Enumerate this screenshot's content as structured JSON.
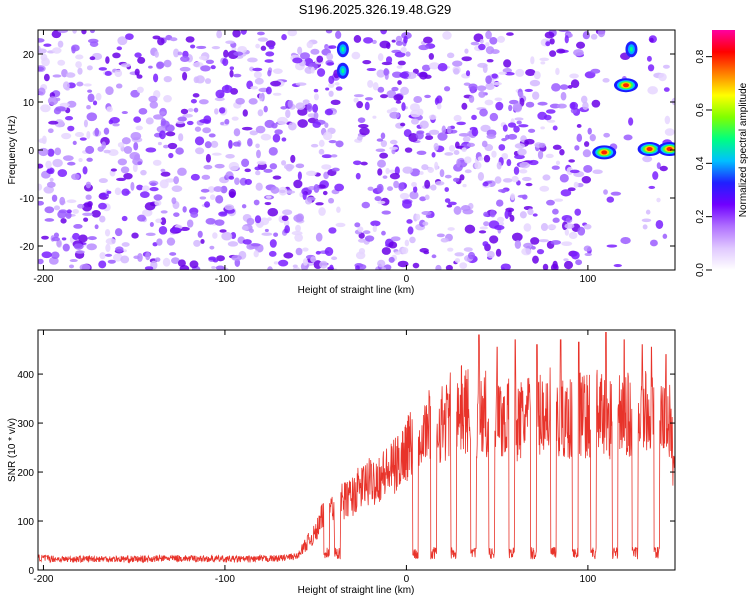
{
  "title": "S196.2025.326.19.48.G29",
  "chart_data": [
    {
      "type": "heatmap",
      "title": "",
      "xlabel": "Height of straight line (km)",
      "ylabel": "Frequency (Hz)",
      "xlim": [
        -203,
        148
      ],
      "ylim": [
        -25,
        25
      ],
      "xticks": [
        -200,
        -100,
        0,
        100
      ],
      "yticks": [
        -20,
        -10,
        0,
        10,
        20
      ],
      "colorbar": {
        "label": "Normalized spectral amplitude",
        "range": [
          0.0,
          0.9
        ],
        "ticks": [
          0.0,
          0.2,
          0.4,
          0.6,
          0.8
        ],
        "colors": [
          "#ffffff",
          "#e0c8ff",
          "#b070ff",
          "#7000ff",
          "#2020ff",
          "#00c0ff",
          "#00ff80",
          "#80ff00",
          "#ffff00",
          "#ff8000",
          "#ff0000",
          "#ff00a0"
        ]
      },
      "features": [
        {
          "x": -35,
          "y": 16.5,
          "value": 0.45
        },
        {
          "x": -35,
          "y": 21.0,
          "value": 0.35
        },
        {
          "x": 109,
          "y": -0.5,
          "value": 0.85
        },
        {
          "x": 121,
          "y": 13.5,
          "value": 0.85
        },
        {
          "x": 124,
          "y": 21.0,
          "value": 0.35
        },
        {
          "x": 134,
          "y": 0.2,
          "value": 0.85
        },
        {
          "x": 145,
          "y": 0.2,
          "value": 0.8
        }
      ],
      "gaps": [
        [
          -36,
          -28
        ],
        [
          117,
          119
        ],
        [
          126,
          130
        ]
      ]
    },
    {
      "type": "line",
      "title": "",
      "xlabel": "Height of straight line (km)",
      "ylabel": "SNR (10 * v/v)",
      "xlim": [
        -203,
        148
      ],
      "ylim": [
        0,
        490
      ],
      "xticks": [
        -200,
        -100,
        0,
        100
      ],
      "yticks": [
        0,
        100,
        200,
        300,
        400
      ],
      "color": "#e8332a",
      "x": [
        -203,
        -190,
        -170,
        -150,
        -130,
        -110,
        -90,
        -70,
        -60,
        -55,
        -50,
        -45,
        -40,
        -35,
        -30,
        -25,
        -20,
        -15,
        -10,
        -5,
        0,
        5,
        10,
        15,
        20,
        25,
        30,
        35,
        40,
        45,
        50,
        55,
        60,
        65,
        70,
        75,
        80,
        85,
        90,
        95,
        100,
        105,
        110,
        115,
        120,
        125,
        130,
        135,
        140,
        145,
        148
      ],
      "y": [
        25,
        22,
        23,
        22,
        24,
        23,
        22,
        24,
        28,
        55,
        75,
        120,
        125,
        140,
        150,
        170,
        180,
        190,
        200,
        215,
        250,
        270,
        290,
        300,
        300,
        320,
        330,
        320,
        315,
        320,
        305,
        310,
        300,
        310,
        315,
        320,
        325,
        300,
        310,
        320,
        315,
        320,
        310,
        315,
        320,
        310,
        320,
        315,
        310,
        300,
        200
      ],
      "dropouts": [
        -44,
        -38,
        5,
        15,
        26,
        37,
        47,
        58,
        70,
        81,
        93,
        103,
        115,
        126,
        138
      ],
      "peaks": [
        [
          40,
          480
        ],
        [
          50,
          455
        ],
        [
          60,
          470
        ],
        [
          72,
          460
        ],
        [
          85,
          470
        ],
        [
          95,
          465
        ],
        [
          110,
          485
        ],
        [
          120,
          470
        ],
        [
          130,
          460
        ],
        [
          135,
          455
        ],
        [
          143,
          440
        ]
      ]
    }
  ]
}
